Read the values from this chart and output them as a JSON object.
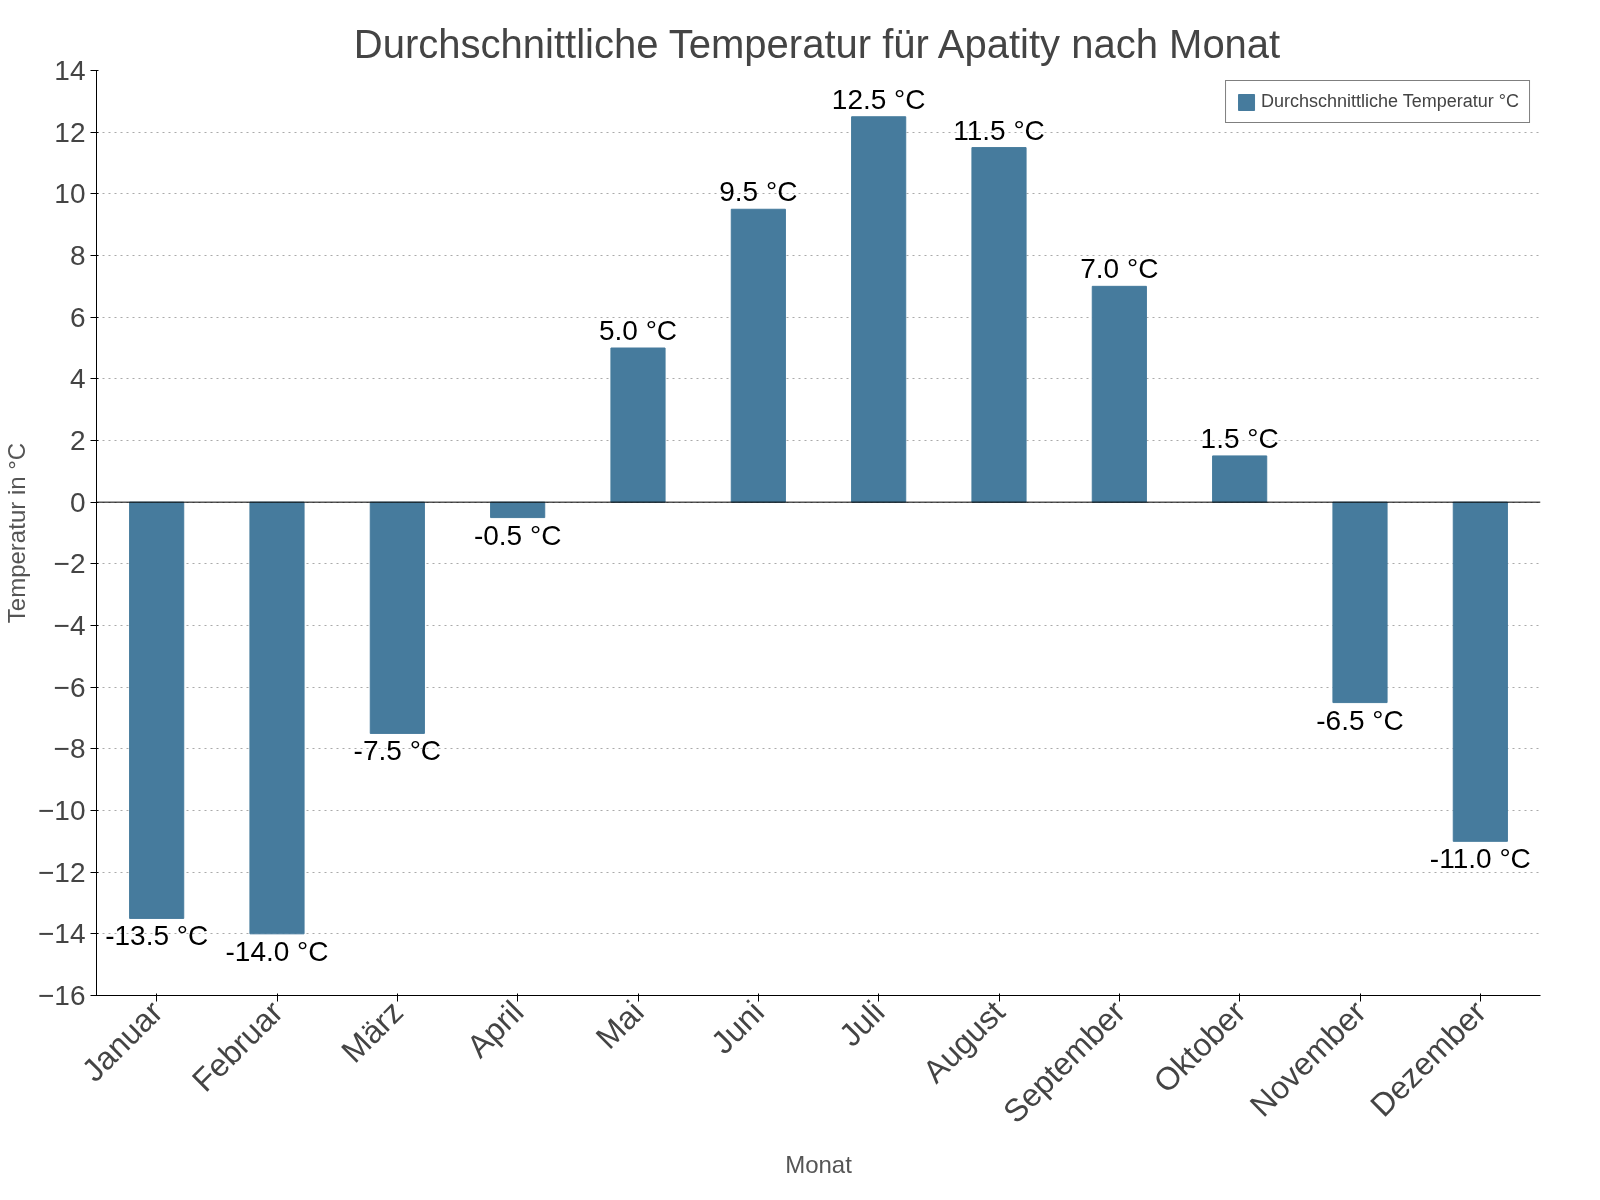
{
  "chart_data": {
    "type": "bar",
    "title": "Durchschnittliche Temperatur für Apatity nach Monat",
    "xlabel": "Monat",
    "ylabel": "Temperatur in °C",
    "categories": [
      "Januar",
      "Februar",
      "März",
      "April",
      "Mai",
      "Juni",
      "Juli",
      "August",
      "September",
      "Oktober",
      "November",
      "Dezember"
    ],
    "series": [
      {
        "name": "Durchschnittliche Temperatur °C",
        "color": "#467b9d",
        "values": [
          -13.5,
          -14.0,
          -7.5,
          -0.5,
          5.0,
          9.5,
          12.5,
          11.5,
          7.0,
          1.5,
          -6.5,
          -11.0
        ],
        "value_labels": [
          "-13.5 °C",
          "-14.0 °C",
          "-7.5 °C",
          "-0.5 °C",
          "5.0 °C",
          "9.5 °C",
          "12.5 °C",
          "11.5 °C",
          "7.0 °C",
          "1.5 °C",
          "-6.5 °C",
          "-11.0 °C"
        ]
      }
    ],
    "ylim": [
      -16,
      14
    ],
    "yticks": [
      -16,
      -14,
      -12,
      -10,
      -8,
      -6,
      -4,
      -2,
      0,
      2,
      4,
      6,
      8,
      10,
      12,
      14
    ],
    "grid": "y",
    "legend": "top right",
    "ref_lines": [
      {
        "axis": "y",
        "value": 0,
        "color": "#000000"
      }
    ]
  }
}
